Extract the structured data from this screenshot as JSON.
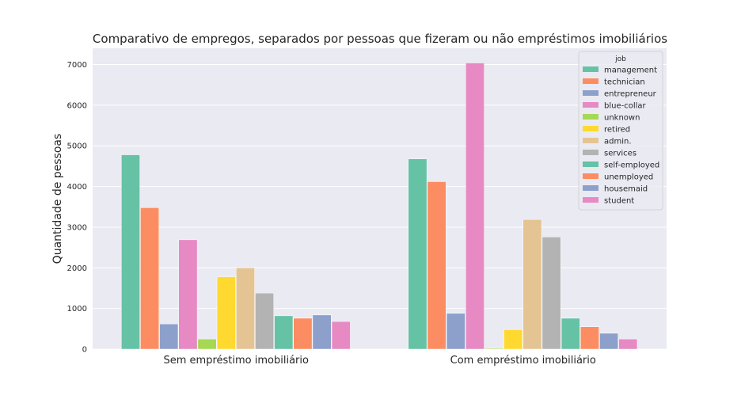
{
  "chart_data": {
    "type": "bar",
    "title": "Comparativo de empregos, separados por pessoas que fizeram ou não empréstimos imobiliários",
    "xlabel": "",
    "ylabel": "Quantidade de pessoas",
    "ylim": [
      0,
      7400
    ],
    "yticks": [
      0,
      1000,
      2000,
      3000,
      4000,
      5000,
      6000,
      7000
    ],
    "categories": [
      "Sem empréstimo imobiliário",
      "Com empréstimo imobiliário"
    ],
    "grid": true,
    "legend": {
      "title": "job",
      "placement": "top-right"
    },
    "series": [
      {
        "name": "management",
        "color": "#66c2a5",
        "values": [
          4780,
          4680
        ]
      },
      {
        "name": "technician",
        "color": "#fc8d62",
        "values": [
          3480,
          4120
        ]
      },
      {
        "name": "entrepreneur",
        "color": "#8da0cb",
        "values": [
          620,
          880
        ]
      },
      {
        "name": "blue-collar",
        "color": "#e78ac3",
        "values": [
          2690,
          7040
        ]
      },
      {
        "name": "unknown",
        "color": "#a6d854",
        "values": [
          250,
          20
        ]
      },
      {
        "name": "retired",
        "color": "#ffd92f",
        "values": [
          1780,
          480
        ]
      },
      {
        "name": "admin.",
        "color": "#e5c494",
        "values": [
          2000,
          3190
        ]
      },
      {
        "name": "services",
        "color": "#b3b3b3",
        "values": [
          1380,
          2760
        ]
      },
      {
        "name": "self-employed",
        "color": "#66c2a5",
        "values": [
          820,
          760
        ]
      },
      {
        "name": "unemployed",
        "color": "#fc8d62",
        "values": [
          760,
          550
        ]
      },
      {
        "name": "housemaid",
        "color": "#8da0cb",
        "values": [
          840,
          390
        ]
      },
      {
        "name": "student",
        "color": "#e78ac3",
        "values": [
          680,
          250
        ]
      }
    ]
  }
}
